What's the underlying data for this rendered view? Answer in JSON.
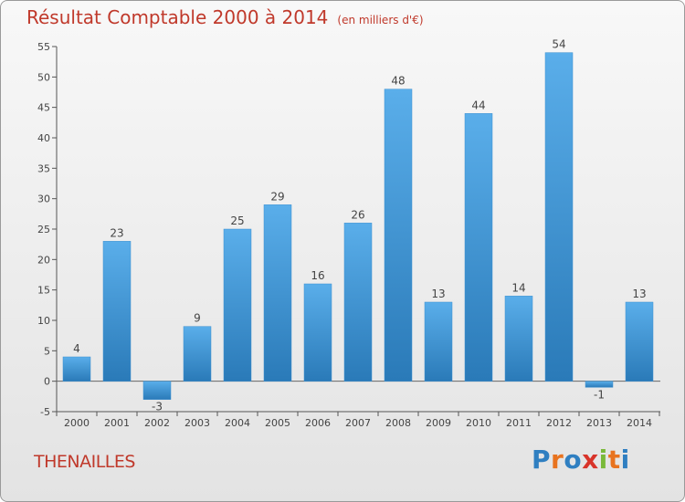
{
  "header": {
    "title": "Résultat Comptable 2000 à 2014",
    "unit": "(en milliers d'€)"
  },
  "footer": {
    "town": "THENAILLES",
    "logo": [
      "P",
      "r",
      "o",
      "x",
      "i",
      "t",
      "i"
    ]
  },
  "colors": {
    "title": "#c0392b",
    "bar_light": "#5aaeea",
    "bar_dark": "#2a7ab8",
    "logo": [
      "#2f7fc1",
      "#e8731f",
      "#2f7fc1",
      "#d8342a",
      "#7ab93a",
      "#e8731f",
      "#2f7fc1"
    ]
  },
  "chart_data": {
    "type": "bar",
    "categories": [
      "2000",
      "2001",
      "2002",
      "2003",
      "2004",
      "2005",
      "2006",
      "2007",
      "2008",
      "2009",
      "2010",
      "2011",
      "2012",
      "2013",
      "2014"
    ],
    "values": [
      4,
      23,
      -3,
      9,
      25,
      29,
      16,
      26,
      48,
      13,
      44,
      14,
      54,
      -1,
      13
    ],
    "title": "Résultat Comptable 2000 à 2014",
    "xlabel": "",
    "ylabel": "",
    "ylim": [
      -5,
      55
    ],
    "yticks": [
      -5,
      0,
      5,
      10,
      15,
      20,
      25,
      30,
      35,
      40,
      45,
      50,
      55
    ],
    "grid": false,
    "legend": "none"
  }
}
